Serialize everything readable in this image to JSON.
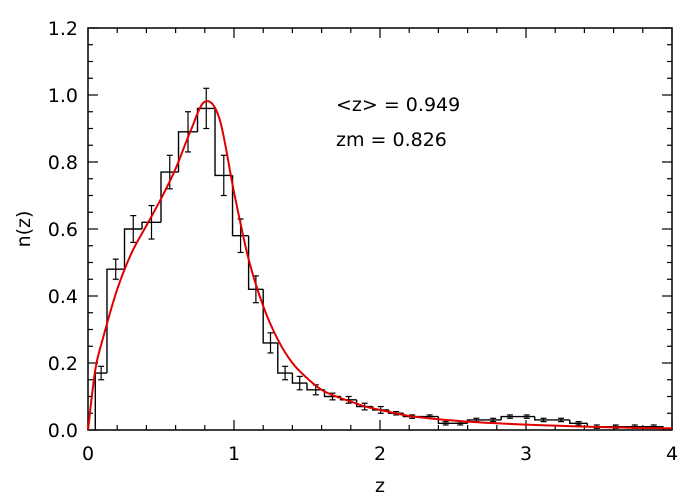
{
  "chart_data": {
    "type": "bar",
    "title": "",
    "xlabel": "z",
    "ylabel": "n(z)",
    "xlim": [
      0,
      4
    ],
    "ylim": [
      0,
      1.2
    ],
    "grid": false,
    "x_ticks": [
      0,
      1,
      2,
      3,
      4
    ],
    "x_tick_labels": [
      "0",
      "1",
      "2",
      "3",
      "4"
    ],
    "y_ticks": [
      0.0,
      0.2,
      0.4,
      0.6,
      0.8,
      1.0,
      1.2
    ],
    "y_tick_labels": [
      "0.0",
      "0.2",
      "0.4",
      "0.6",
      "0.8",
      "1.0",
      "1.2"
    ],
    "annotations": [
      "<z> = 0.949",
      "zm = 0.826"
    ],
    "colors": {
      "histogram": "#000000",
      "fit": "#e00000"
    },
    "histogram": {
      "bin_edges": [
        0.05,
        0.13,
        0.25,
        0.37,
        0.5,
        0.62,
        0.75,
        0.87,
        0.99,
        1.1,
        1.2,
        1.3,
        1.4,
        1.5,
        1.62,
        1.73,
        1.84,
        1.95,
        2.06,
        2.16,
        2.28,
        2.4,
        2.5,
        2.6,
        2.72,
        2.83,
        2.95,
        3.06,
        3.18,
        3.3,
        3.42,
        3.55,
        3.68,
        3.81,
        3.94
      ],
      "values": [
        0.17,
        0.48,
        0.6,
        0.62,
        0.77,
        0.89,
        0.96,
        0.76,
        0.58,
        0.42,
        0.26,
        0.17,
        0.14,
        0.12,
        0.1,
        0.09,
        0.07,
        0.06,
        0.05,
        0.04,
        0.04,
        0.02,
        0.02,
        0.03,
        0.03,
        0.04,
        0.04,
        0.03,
        0.03,
        0.02,
        0.01,
        0.01,
        0.01,
        0.01
      ],
      "errors": [
        0.02,
        0.03,
        0.04,
        0.05,
        0.05,
        0.06,
        0.06,
        0.06,
        0.05,
        0.04,
        0.03,
        0.02,
        0.02,
        0.015,
        0.01,
        0.01,
        0.01,
        0.01,
        0.005,
        0.005,
        0.005,
        0.005,
        0.005,
        0.005,
        0.005,
        0.005,
        0.005,
        0.005,
        0.005,
        0.005,
        0.005,
        0.005,
        0.005,
        0.005
      ]
    },
    "fit_curve": {
      "x": [
        0.0,
        0.05,
        0.1,
        0.2,
        0.3,
        0.4,
        0.5,
        0.6,
        0.7,
        0.8,
        0.9,
        1.0,
        1.1,
        1.2,
        1.3,
        1.4,
        1.5,
        1.6,
        1.7,
        1.8,
        1.9,
        2.0,
        2.2,
        2.4,
        2.6,
        2.8,
        3.0,
        3.2,
        3.4,
        3.6,
        3.8,
        4.0
      ],
      "y": [
        0.0,
        0.18,
        0.27,
        0.42,
        0.53,
        0.61,
        0.69,
        0.78,
        0.89,
        0.98,
        0.93,
        0.71,
        0.51,
        0.37,
        0.27,
        0.2,
        0.155,
        0.12,
        0.1,
        0.085,
        0.07,
        0.06,
        0.042,
        0.032,
        0.025,
        0.02,
        0.016,
        0.013,
        0.01,
        0.008,
        0.006,
        0.005
      ]
    }
  }
}
